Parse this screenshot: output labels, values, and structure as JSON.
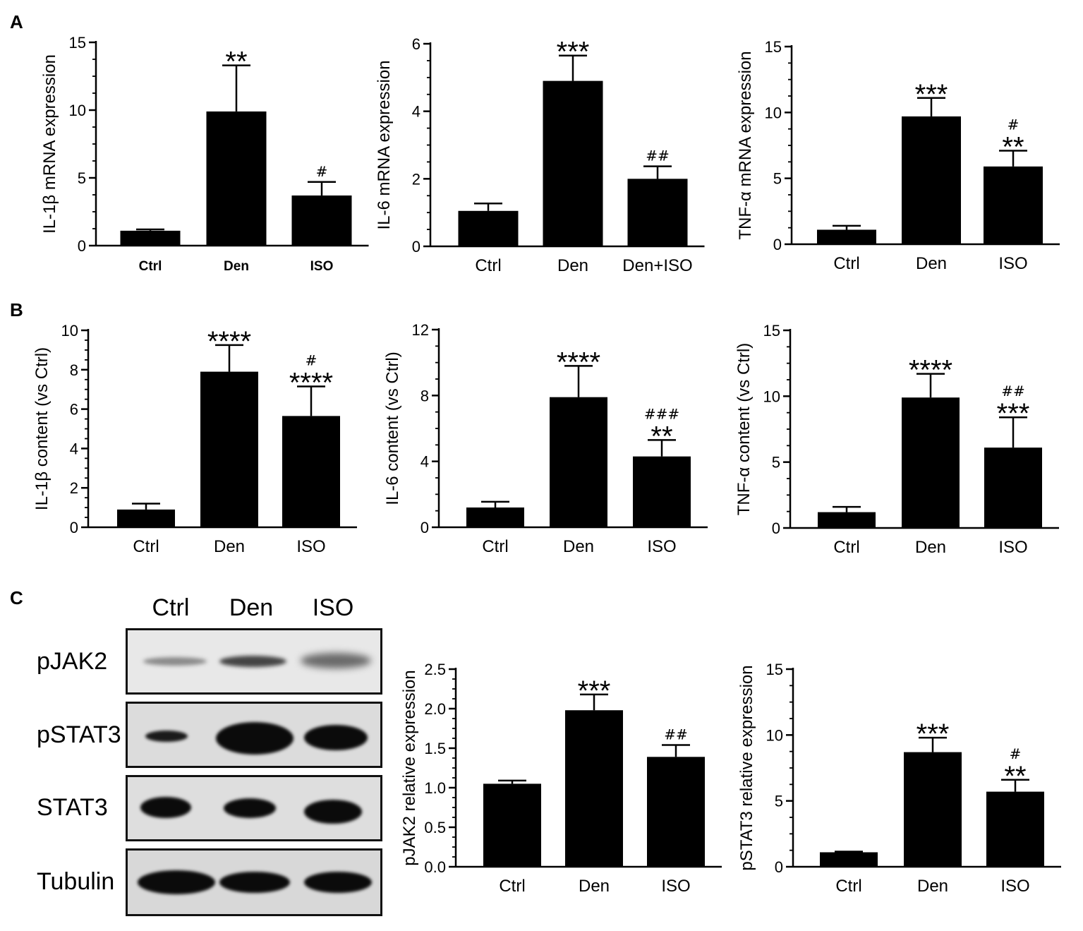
{
  "panels": [
    "A",
    "B",
    "C"
  ],
  "blot": {
    "columns": [
      "Ctrl",
      "Den",
      "ISO"
    ],
    "rows": [
      "pJAK2",
      "pSTAT3",
      "STAT3",
      "Tubulin"
    ]
  },
  "chart_data": [
    {
      "type": "bar",
      "panel": "A",
      "ylabel": "IL-1β mRNA expression",
      "categories": [
        "Ctrl",
        "Den",
        "ISO"
      ],
      "category_style": "bold",
      "values": [
        1.1,
        9.9,
        3.7
      ],
      "errors": [
        0.1,
        3.4,
        1.0
      ],
      "annotations": [
        "",
        "**",
        "#"
      ],
      "ylim": [
        0,
        15
      ],
      "yticks": [
        "0",
        "5",
        "10",
        "15"
      ]
    },
    {
      "type": "bar",
      "panel": "A",
      "ylabel": "IL-6 mRNA expression",
      "categories": [
        "Ctrl",
        "Den",
        "Den+ISO"
      ],
      "values": [
        1.05,
        4.9,
        2.0
      ],
      "errors": [
        0.22,
        0.75,
        0.37
      ],
      "annotations": [
        "",
        "***",
        "##"
      ],
      "ylim": [
        0,
        6
      ],
      "yticks": [
        "0",
        "2",
        "4",
        "6"
      ]
    },
    {
      "type": "bar",
      "panel": "A",
      "ylabel": "TNF-α mRNA expression",
      "categories": [
        "Ctrl",
        "Den",
        "ISO"
      ],
      "values": [
        1.1,
        9.7,
        5.9
      ],
      "errors": [
        0.3,
        1.4,
        1.2
      ],
      "annotations": [
        "",
        "***",
        "#|**"
      ],
      "ylim": [
        0,
        15
      ],
      "yticks": [
        "0",
        "5",
        "10",
        "15"
      ]
    },
    {
      "type": "bar",
      "panel": "B",
      "ylabel": "IL-1β content (vs Ctrl)",
      "categories": [
        "Ctrl",
        "Den",
        "ISO"
      ],
      "values": [
        0.9,
        7.9,
        5.65
      ],
      "errors": [
        0.3,
        1.35,
        1.5
      ],
      "annotations": [
        "",
        "****",
        "#|****"
      ],
      "ylim": [
        0,
        10
      ],
      "yticks": [
        "0",
        "2",
        "4",
        "6",
        "8",
        "10"
      ]
    },
    {
      "type": "bar",
      "panel": "B",
      "ylabel": "IL-6 content (vs Ctrl)",
      "categories": [
        "Ctrl",
        "Den",
        "ISO"
      ],
      "values": [
        1.2,
        7.9,
        4.3
      ],
      "errors": [
        0.35,
        1.9,
        1.0
      ],
      "annotations": [
        "",
        "****",
        "###|**"
      ],
      "ylim": [
        0,
        12
      ],
      "yticks": [
        "0",
        "4",
        "8",
        "12"
      ]
    },
    {
      "type": "bar",
      "panel": "B",
      "ylabel": "TNF-α content (vs Ctrl)",
      "categories": [
        "Ctrl",
        "Den",
        "ISO"
      ],
      "values": [
        1.2,
        9.9,
        6.1
      ],
      "errors": [
        0.4,
        1.8,
        2.3
      ],
      "annotations": [
        "",
        "****",
        "##|***"
      ],
      "ylim": [
        0,
        15
      ],
      "yticks": [
        "0",
        "5",
        "10",
        "15"
      ]
    },
    {
      "type": "bar",
      "panel": "C",
      "ylabel": "pJAK2 relative expression",
      "categories": [
        "Ctrl",
        "Den",
        "ISO"
      ],
      "values": [
        1.05,
        1.98,
        1.39
      ],
      "errors": [
        0.04,
        0.2,
        0.15
      ],
      "annotations": [
        "",
        "***",
        "##"
      ],
      "ylim": [
        0,
        2.5
      ],
      "yticks": [
        "0.0",
        "0.5",
        "1.0",
        "1.5",
        "2.0",
        "2.5"
      ]
    },
    {
      "type": "bar",
      "panel": "C",
      "ylabel": "pSTAT3 relative expression",
      "categories": [
        "Ctrl",
        "Den",
        "ISO"
      ],
      "values": [
        1.1,
        8.7,
        5.7
      ],
      "errors": [
        0.05,
        1.1,
        0.9
      ],
      "annotations": [
        "",
        "***",
        "#|**"
      ],
      "ylim": [
        0,
        15
      ],
      "yticks": [
        "0",
        "5",
        "10",
        "15"
      ]
    }
  ]
}
